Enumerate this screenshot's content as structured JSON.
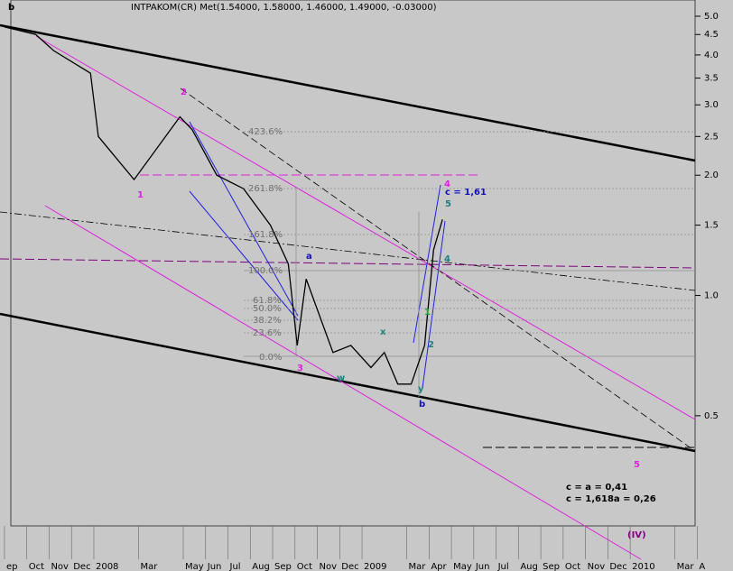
{
  "chart_data": {
    "type": "line",
    "title": "INTPAKOM(CR) Met(1.54000, 1.58000, 1.46000, 1.49000, -0.03000)",
    "corner_label": "b",
    "log_y": true,
    "grid": false,
    "x": [
      0,
      1.4,
      2.2,
      3.85,
      4.2,
      5.8,
      7.85,
      8.4,
      9.5,
      10.7,
      11.9,
      12.7,
      13.1,
      13.5,
      14.7,
      15.5,
      16.4,
      17,
      17.6,
      18.2,
      18.8,
      19.2,
      19.6
    ],
    "series": [
      {
        "name": "INTPAKOM(CR)",
        "color": "#000000",
        "values": [
          4.7,
          4.5,
          4.1,
          3.6,
          2.5,
          1.95,
          2.8,
          2.6,
          2.0,
          1.85,
          1.5,
          1.2,
          0.75,
          1.1,
          0.72,
          0.75,
          0.66,
          0.72,
          0.6,
          0.6,
          0.75,
          1.3,
          1.55
        ]
      }
    ],
    "xlim": [
      -0.2,
      32.6
    ],
    "xticks": [
      {
        "value": 0,
        "label": "ep"
      },
      {
        "value": 1,
        "label": "Oct"
      },
      {
        "value": 2,
        "label": "Nov"
      },
      {
        "value": 3,
        "label": "Dec"
      },
      {
        "value": 4,
        "label": "2008"
      },
      {
        "value": 6,
        "label": "Mar"
      },
      {
        "value": 8,
        "label": "May"
      },
      {
        "value": 9,
        "label": "Jun"
      },
      {
        "value": 10,
        "label": "Jul"
      },
      {
        "value": 11,
        "label": "Aug"
      },
      {
        "value": 12,
        "label": "Sep"
      },
      {
        "value": 13,
        "label": "Oct"
      },
      {
        "value": 14,
        "label": "Nov"
      },
      {
        "value": 15,
        "label": "Dec"
      },
      {
        "value": 16,
        "label": "2009"
      },
      {
        "value": 18,
        "label": "Mar"
      },
      {
        "value": 19,
        "label": "Apr"
      },
      {
        "value": 20,
        "label": "May"
      },
      {
        "value": 21,
        "label": "Jun"
      },
      {
        "value": 22,
        "label": "Jul"
      },
      {
        "value": 23,
        "label": "Aug"
      },
      {
        "value": 24,
        "label": "Sep"
      },
      {
        "value": 25,
        "label": "Oct"
      },
      {
        "value": 26,
        "label": "Nov"
      },
      {
        "value": 27,
        "label": "Dec"
      },
      {
        "value": 28,
        "label": "2010"
      },
      {
        "value": 30,
        "label": "Mar"
      },
      {
        "value": 31,
        "label": "A"
      }
    ],
    "ylim": [
      0.265,
      5.49
    ],
    "yticks": [
      {
        "value": 5,
        "label": "5.0"
      },
      {
        "value": 4.5,
        "label": "4.5"
      },
      {
        "value": 4,
        "label": "4.0"
      },
      {
        "value": 3.5,
        "label": "3.5"
      },
      {
        "value": 3,
        "label": "3.0"
      },
      {
        "value": 2.5,
        "label": "2.5"
      },
      {
        "value": 2,
        "label": "2.0"
      },
      {
        "value": 1.5,
        "label": "1.5"
      },
      {
        "value": 1,
        "label": "1.0"
      },
      {
        "value": 0.5,
        "label": "0.5"
      }
    ],
    "annotations": [
      {
        "text": "423.6%",
        "color": "#707070"
      },
      {
        "text": "261.8%",
        "color": "#707070"
      },
      {
        "text": "161.8%",
        "color": "#707070"
      },
      {
        "text": "100.0%",
        "color": "#707070"
      },
      {
        "text": "61.8%",
        "color": "#707070"
      },
      {
        "text": "50.0%",
        "color": "#707070"
      },
      {
        "text": "38.2%",
        "color": "#707070"
      },
      {
        "text": "23.6%",
        "color": "#707070"
      },
      {
        "text": "0.0%",
        "color": "#707070"
      },
      {
        "text": "1",
        "color": "#e020e0"
      },
      {
        "text": "2",
        "color": "#e020e0"
      },
      {
        "text": "3",
        "color": "#e020e0"
      },
      {
        "text": "4",
        "color": "#e020e0"
      },
      {
        "text": "5",
        "color": "#e020e0"
      },
      {
        "text": "a",
        "color": "#1010c0"
      },
      {
        "text": "b",
        "color": "#1010c0"
      },
      {
        "text": "c = 1,61",
        "color": "#1010c0"
      },
      {
        "text": "5",
        "color": "#208080"
      },
      {
        "text": "4",
        "color": "#208080"
      },
      {
        "text": "1",
        "color": "#20a020"
      },
      {
        "text": "2",
        "color": "#208080"
      },
      {
        "text": "x",
        "color": "#208080"
      },
      {
        "text": "w",
        "color": "#208080"
      },
      {
        "text": "y",
        "color": "#208080"
      },
      {
        "text": "c = a = 0,41",
        "color": "#000000"
      },
      {
        "text": "c = 1,618a = 0,26",
        "color": "#000000"
      },
      {
        "text": "(IV)",
        "color": "#800080"
      }
    ]
  }
}
